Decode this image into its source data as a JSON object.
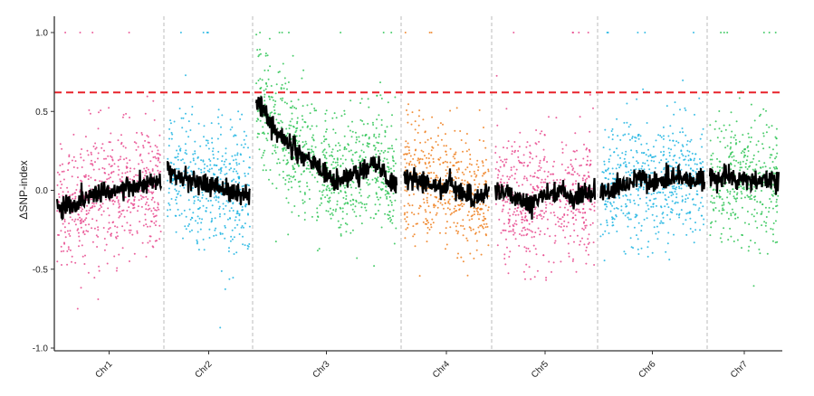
{
  "chart_data": {
    "type": "scatter",
    "title": "",
    "xlabel": "",
    "ylabel": "ΔSNP-index",
    "ylim": [
      -1.0,
      1.0
    ],
    "yticks": [
      "1.0",
      "0.5",
      "0.0",
      "-0.5",
      "-1.0"
    ],
    "grid": false,
    "threshold": {
      "value": 0.62,
      "color": "#E8222A",
      "style": "dashed"
    },
    "trend_color": "#000000",
    "chromosomes": [
      {
        "name": "Chr1",
        "color": "#E8488D",
        "trend": [
          -0.12,
          -0.1,
          -0.08,
          -0.05,
          -0.02,
          0.0,
          0.0,
          0.01,
          0.02,
          0.03,
          0.05,
          0.04
        ]
      },
      {
        "name": "Chr2",
        "color": "#1DB4E2",
        "trend": [
          0.12,
          0.1,
          0.08,
          0.06,
          0.04,
          0.04,
          0.03,
          0.0,
          -0.02,
          -0.03,
          -0.02
        ]
      },
      {
        "name": "Chr3",
        "color": "#2EC455",
        "trend": [
          0.58,
          0.45,
          0.35,
          0.28,
          0.22,
          0.15,
          0.1,
          0.06,
          0.08,
          0.12,
          0.18,
          0.1,
          0.02
        ]
      },
      {
        "name": "Chr4",
        "color": "#EF7E1C",
        "trend": [
          0.05,
          0.08,
          0.06,
          0.03,
          0.02,
          0.05,
          -0.02,
          -0.05,
          -0.03,
          0.0
        ]
      },
      {
        "name": "Chr5",
        "color": "#E8488D",
        "trend": [
          0.0,
          -0.03,
          -0.05,
          -0.1,
          -0.04,
          -0.02,
          0.0,
          -0.05,
          -0.02,
          -0.03
        ]
      },
      {
        "name": "Chr6",
        "color": "#1DB4E2",
        "trend": [
          -0.05,
          0.0,
          0.02,
          0.05,
          0.08,
          0.04,
          0.06,
          0.1,
          0.08,
          0.05,
          0.07
        ]
      },
      {
        "name": "Chr7",
        "color": "#2EC455",
        "trend": [
          0.08,
          0.06,
          0.1,
          0.05,
          0.08,
          0.04,
          0.07,
          0.05,
          0.08
        ]
      }
    ]
  }
}
